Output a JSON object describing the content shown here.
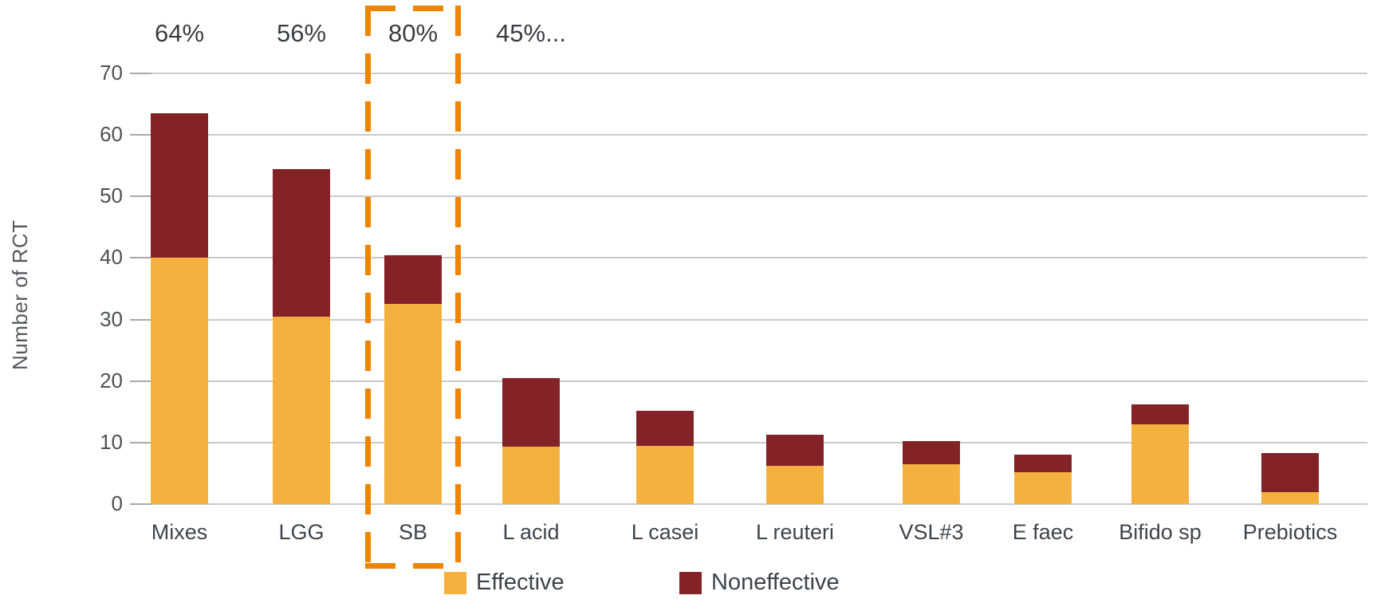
{
  "chart_data": {
    "type": "bar",
    "stacked": true,
    "title": "",
    "xlabel": "",
    "ylabel": "Number of RCT",
    "ylim": [
      0,
      70
    ],
    "yticks": [
      0,
      10,
      20,
      30,
      40,
      50,
      60,
      70
    ],
    "grid": true,
    "legend_position": "bottom",
    "categories": [
      "Mixes",
      "LGG",
      "SB",
      "L acid",
      "L casei",
      "L reuteri",
      "VSL#3",
      "E faec",
      "Bifido sp",
      "Prebiotics"
    ],
    "series": [
      {
        "name": "Effective",
        "color": "#F5B140",
        "values": [
          40.0,
          30.5,
          32.5,
          9.3,
          9.4,
          6.2,
          6.5,
          5.2,
          13.0,
          2.0
        ]
      },
      {
        "name": "Noneffective",
        "color": "#832227",
        "values": [
          23.5,
          24.0,
          8.0,
          11.2,
          5.8,
          5.1,
          3.7,
          2.8,
          3.2,
          6.3
        ]
      }
    ],
    "annotations": [
      {
        "category": "Mixes",
        "text": "64%"
      },
      {
        "category": "LGG",
        "text": "56%"
      },
      {
        "category": "SB",
        "text": "80%"
      },
      {
        "category": "L acid",
        "text": "45%..."
      }
    ],
    "highlight": {
      "category": "SB",
      "style": "dashed-box",
      "color": "#EE8400"
    }
  },
  "legend": {
    "items": [
      {
        "label": "Effective",
        "color": "#F5B140"
      },
      {
        "label": "Noneffective",
        "color": "#832227"
      }
    ]
  },
  "colors": {
    "effective": "#F5B140",
    "noneffective": "#832227",
    "highlight_dash": "#EE8400",
    "gridline": "#CBCBCB",
    "text": "#3E444B"
  }
}
